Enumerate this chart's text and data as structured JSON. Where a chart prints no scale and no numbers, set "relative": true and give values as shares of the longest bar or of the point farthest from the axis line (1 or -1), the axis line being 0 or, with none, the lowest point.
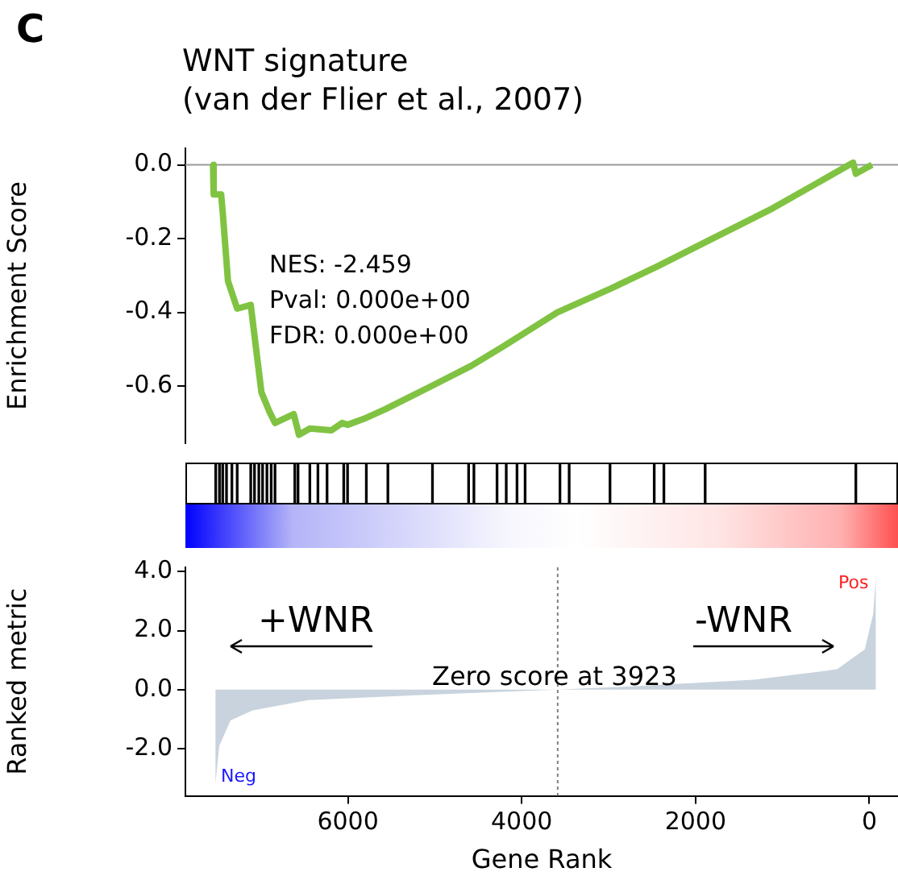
{
  "chart_data": [
    {
      "type": "line",
      "title": "WNT signature\n(van der Flier et al., 2007)",
      "ylabel": "Enrichment Score",
      "annotations": [
        "C",
        "NES: -2.459",
        "Pval: 0.000e+00",
        "FDR: 0.000e+00"
      ],
      "x": [
        7552,
        7545,
        7459,
        7440,
        7380,
        7274,
        7118,
        7056,
        6995,
        6902,
        6839,
        6624,
        6563,
        6438,
        6190,
        6066,
        6004,
        5818,
        5571,
        5014,
        4580,
        4209,
        3590,
        2971,
        2445,
        1889,
        1114,
        186,
        155,
        -31
      ],
      "series": [
        {
          "color": "#80c342",
          "values": [
            0.0,
            -0.08,
            -0.08,
            -0.13,
            -0.315,
            -0.39,
            -0.38,
            -0.5,
            -0.617,
            -0.67,
            -0.7,
            -0.676,
            -0.732,
            -0.715,
            -0.72,
            -0.7,
            -0.705,
            -0.689,
            -0.663,
            -0.597,
            -0.545,
            -0.492,
            -0.4,
            -0.335,
            -0.276,
            -0.21,
            -0.118,
            0.006,
            -0.024,
            0.0
          ]
        }
      ],
      "xlim": [
        7870,
        -330
      ],
      "ylim": [
        -0.755,
        0.045
      ],
      "yticks": [
        {
          "value": 0,
          "label": "0.0"
        },
        {
          "value": -0.2,
          "label": "-0.2"
        },
        {
          "value": -0.4,
          "label": "-0.4"
        },
        {
          "value": -0.6,
          "label": "-0.6"
        }
      ],
      "tick_labels": "y",
      "ref_lines": [
        {
          "axis": "y",
          "value": 0,
          "color": "#999999"
        }
      ]
    },
    {
      "type": "bar",
      "relative": true,
      "color": "#000000",
      "x": [
        7521,
        7478,
        7441,
        7397,
        7335,
        7274,
        7118,
        7075,
        7025,
        6982,
        6932,
        6883,
        6839,
        6611,
        6574,
        6438,
        6345,
        6240,
        6048,
        6004,
        5788,
        5540,
        5027,
        4611,
        4550,
        4284,
        4178,
        4054,
        3961,
        3560,
        3454,
        2984,
        2475,
        2364,
        1889,
        155
      ],
      "values": [
        1,
        1,
        1,
        1,
        1,
        1,
        1,
        1,
        1,
        1,
        1,
        1,
        1,
        1,
        1,
        1,
        1,
        1,
        1,
        1,
        1,
        1,
        1,
        1,
        1,
        1,
        1,
        1,
        1,
        1,
        1,
        1,
        1,
        1,
        1,
        1
      ],
      "xlim": [
        7870,
        -330
      ],
      "tick_labels": false
    },
    {
      "type": "area",
      "xlabel": "Gene Rank",
      "ylabel": "Ranked metric",
      "annotations": [
        "+WNR",
        "-WNR",
        "Zero score at 3923",
        "Neg",
        "Pos"
      ],
      "x": [
        7525,
        7480,
        7351,
        7095,
        6455,
        5174,
        3586,
        2613,
        1331,
        371,
        52,
        -45,
        -76
      ],
      "series": [
        {
          "color": "#c8d3dd",
          "values": [
            -3.2,
            -1.9,
            -1.04,
            -0.7,
            -0.35,
            -0.18,
            0.0,
            0.13,
            0.34,
            0.69,
            1.37,
            2.58,
            3.87
          ]
        }
      ],
      "xlim": [
        7870,
        -330
      ],
      "ylim": [
        -3.6,
        4.15
      ],
      "xticks": [
        6000,
        4000,
        2000,
        0
      ],
      "yticks": [
        {
          "value": 4,
          "label": "4.0"
        },
        {
          "value": 2,
          "label": "2.0"
        },
        {
          "value": 0,
          "label": "0.0"
        },
        {
          "value": -2,
          "label": "-2.0"
        }
      ],
      "ref_lines": [
        {
          "axis": "x",
          "value": 3586,
          "color": "#808080",
          "line_style": "dotted"
        }
      ]
    }
  ]
}
